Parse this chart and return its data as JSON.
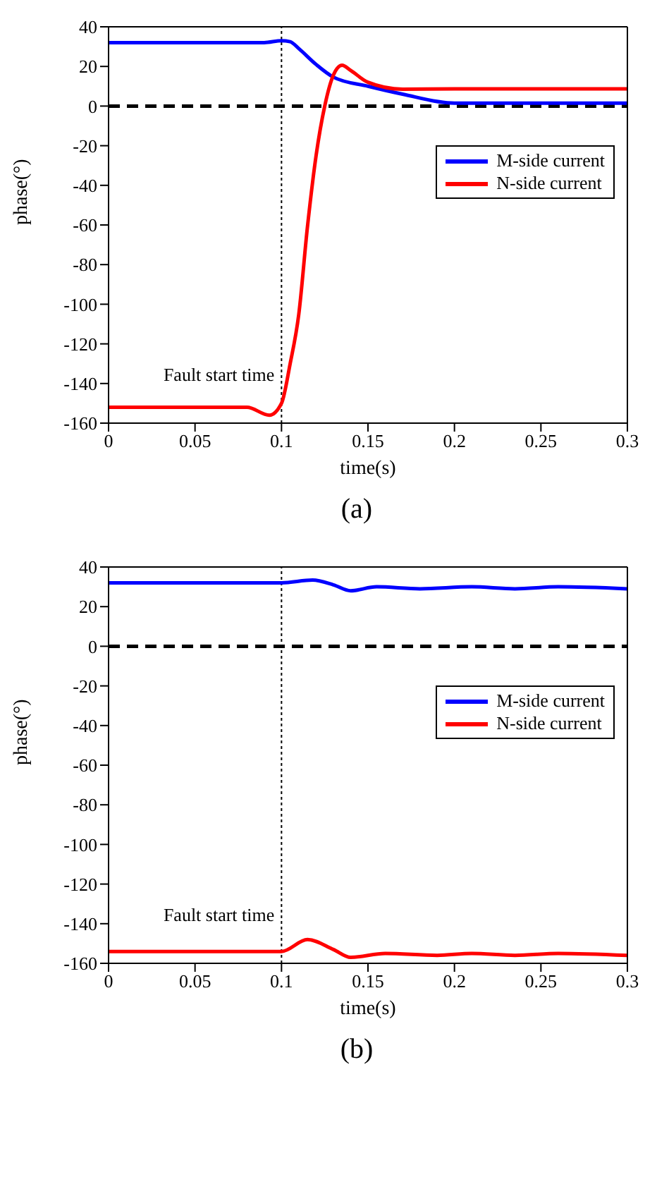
{
  "chart_data": [
    {
      "type": "line",
      "xlabel": "time(s)",
      "ylabel": "phase(°)",
      "annotations": [
        "(a)"
      ],
      "xlim": [
        0,
        0.3
      ],
      "ylim": [
        -160,
        40
      ],
      "xticks": [
        0,
        0.05,
        0.1,
        0.15,
        0.2,
        0.25,
        0.3
      ],
      "yticks": [
        -160,
        -140,
        -120,
        -100,
        -80,
        -60,
        -40,
        -20,
        0,
        20,
        40
      ],
      "grid": false,
      "legend": "right",
      "marker": "none",
      "line_style": "solid",
      "ref_lines": [
        {
          "axis": "x",
          "value": 0.1,
          "label": "Fault start time",
          "color": "#000000",
          "line_style": "dotted"
        },
        {
          "axis": "y",
          "value": 0,
          "label": null,
          "color": "#000000",
          "line_style": "dashed"
        }
      ],
      "series": [
        {
          "name": "M-side current",
          "color": "#0000ff",
          "x": [
            0,
            0.05,
            0.09,
            0.1,
            0.105,
            0.11,
            0.12,
            0.13,
            0.15,
            0.17,
            0.2,
            0.25,
            0.3
          ],
          "values": [
            32,
            32,
            32,
            33,
            32.5,
            29,
            21,
            14.6,
            10,
            6,
            1.5,
            1.5,
            1.5
          ]
        },
        {
          "name": "N-side current",
          "color": "#ff0000",
          "x": [
            0,
            0.05,
            0.08,
            0.093,
            0.1,
            0.105,
            0.11,
            0.115,
            0.12,
            0.125,
            0.13,
            0.135,
            0.14,
            0.15,
            0.17,
            0.2,
            0.25,
            0.3
          ],
          "values": [
            -152,
            -152,
            -152,
            -156,
            -150,
            -130,
            -105,
            -61,
            -25,
            0,
            15.6,
            20.6,
            18,
            12,
            8.5,
            8.7,
            8.7,
            8.7
          ]
        }
      ]
    },
    {
      "type": "line",
      "xlabel": "time(s)",
      "ylabel": "phase(°)",
      "annotations": [
        "(b)"
      ],
      "xlim": [
        0,
        0.3
      ],
      "ylim": [
        -160,
        40
      ],
      "xticks": [
        0,
        0.05,
        0.1,
        0.15,
        0.2,
        0.25,
        0.3
      ],
      "yticks": [
        -160,
        -140,
        -120,
        -100,
        -80,
        -60,
        -40,
        -20,
        0,
        20,
        40
      ],
      "grid": false,
      "legend": "right",
      "marker": "none",
      "line_style": "solid",
      "ref_lines": [
        {
          "axis": "x",
          "value": 0.1,
          "label": "Fault start time",
          "color": "#000000",
          "line_style": "dotted"
        },
        {
          "axis": "y",
          "value": 0,
          "label": null,
          "color": "#000000",
          "line_style": "dashed"
        }
      ],
      "series": [
        {
          "name": "M-side current",
          "color": "#0000ff",
          "x": [
            0,
            0.05,
            0.1,
            0.118,
            0.13,
            0.14,
            0.155,
            0.18,
            0.21,
            0.235,
            0.26,
            0.3
          ],
          "values": [
            32,
            32,
            32,
            33.4,
            31,
            28,
            30,
            29,
            30,
            29,
            30,
            29
          ]
        },
        {
          "name": "N-side current",
          "color": "#ff0000",
          "x": [
            0,
            0.05,
            0.1,
            0.115,
            0.13,
            0.14,
            0.16,
            0.19,
            0.21,
            0.235,
            0.26,
            0.3
          ],
          "values": [
            -154,
            -154,
            -154,
            -148,
            -153,
            -157,
            -155,
            -156,
            -155,
            -156,
            -155,
            -156
          ]
        }
      ]
    }
  ]
}
